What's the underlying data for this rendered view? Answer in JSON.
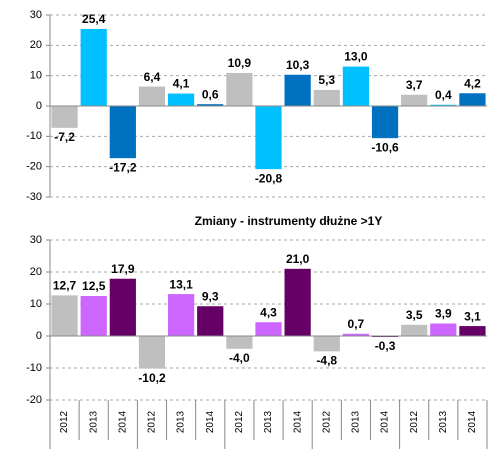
{
  "chart_data": [
    {
      "type": "bar",
      "categories": [
        null,
        null,
        null,
        null,
        null,
        null,
        null,
        null,
        null,
        null,
        null,
        null,
        null,
        null,
        null
      ],
      "values": [
        -7.2,
        25.4,
        -17.2,
        6.4,
        4.1,
        0.6,
        10.9,
        -20.8,
        10.3,
        5.3,
        13.0,
        -10.6,
        3.7,
        0.4,
        4.2
      ],
      "value_labels": [
        "-7,2",
        "25,4",
        "-17,2",
        "6,4",
        "4,1",
        "0,6",
        "10,9",
        "-20,8",
        "10,3",
        "5,3",
        "13,0",
        "-10,6",
        "3,7",
        "0,4",
        "4,2"
      ],
      "colors": [
        "#bfbfbf",
        "#00c0ff",
        "#0070c0",
        "#bfbfbf",
        "#00c0ff",
        "#0070c0",
        "#bfbfbf",
        "#00c0ff",
        "#0070c0",
        "#bfbfbf",
        "#00c0ff",
        "#0070c0",
        "#bfbfbf",
        "#00c0ff",
        "#0070c0"
      ],
      "ylim": [
        -30,
        30
      ],
      "yticks": [
        -30,
        -20,
        -10,
        0,
        10,
        20,
        30
      ],
      "grid": true
    },
    {
      "type": "bar",
      "title": "Zmiany - instrumenty dłużne >1Y",
      "categories": [
        "2012",
        "2013",
        "2014",
        "2012",
        "2013",
        "2014",
        "2012",
        "2013",
        "2014",
        "2012",
        "2013",
        "2014",
        "2012",
        "2013",
        "2014"
      ],
      "values": [
        12.7,
        12.5,
        17.9,
        -10.2,
        13.1,
        9.3,
        -4.0,
        4.3,
        21.0,
        -4.8,
        0.7,
        -0.3,
        3.5,
        3.9,
        3.1
      ],
      "value_labels": [
        "12,7",
        "12,5",
        "17,9",
        "-10,2",
        "13,1",
        "9,3",
        "-4,0",
        "4,3",
        "21,0",
        "-4,8",
        "0,7",
        "-0,3",
        "3,5",
        "3,9",
        "3,1"
      ],
      "colors": [
        "#bfbfbf",
        "#cc66ff",
        "#660066",
        "#bfbfbf",
        "#cc66ff",
        "#660066",
        "#bfbfbf",
        "#cc66ff",
        "#660066",
        "#bfbfbf",
        "#cc66ff",
        "#660066",
        "#bfbfbf",
        "#cc66ff",
        "#660066"
      ],
      "ylim": [
        -20,
        30
      ],
      "yticks": [
        -20,
        -10,
        0,
        10,
        20,
        30
      ],
      "grid": true
    }
  ]
}
